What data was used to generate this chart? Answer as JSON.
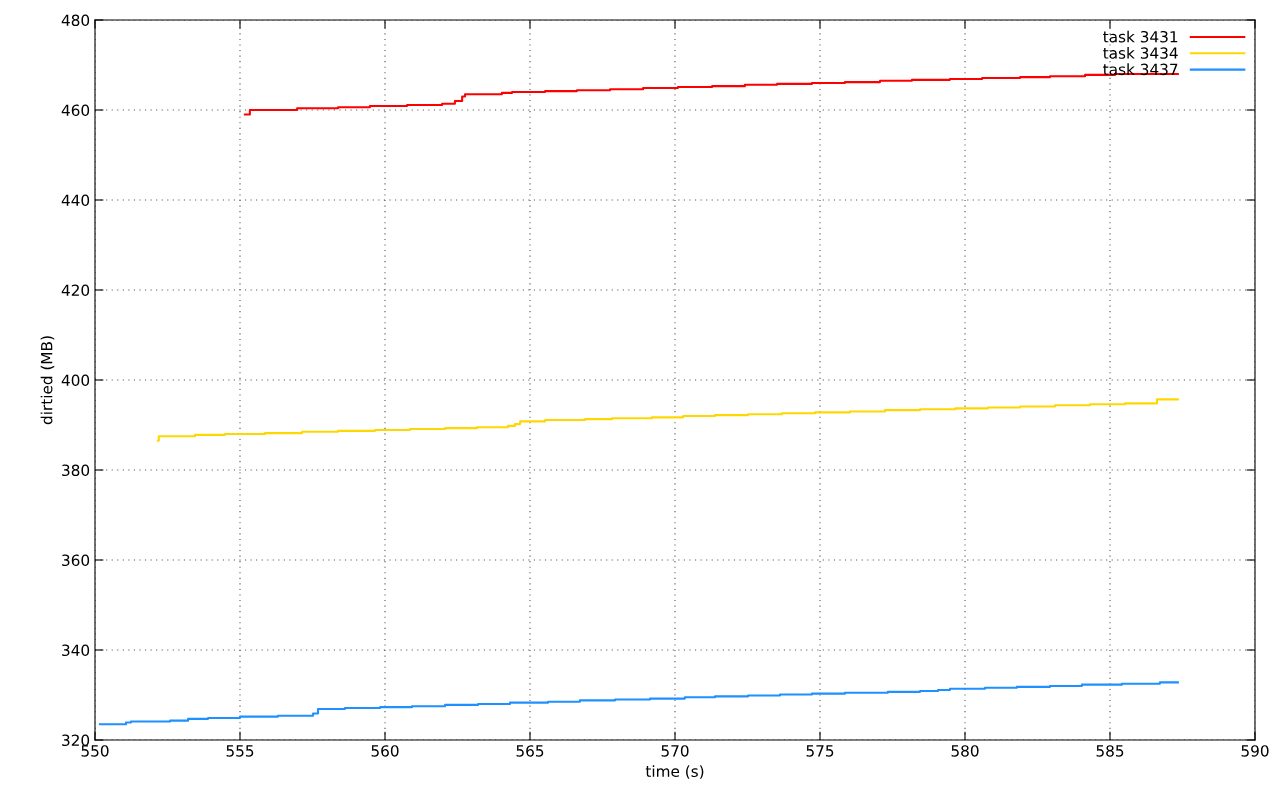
{
  "chart_data": {
    "type": "step",
    "xlabel": "time (s)",
    "ylabel": "dirtied (MB)",
    "xlim": [
      550,
      590
    ],
    "xticks": [
      550,
      555,
      560,
      565,
      570,
      575,
      580,
      585,
      590
    ],
    "ylim": [
      320,
      480
    ],
    "yticks": [
      320,
      340,
      360,
      380,
      400,
      420,
      440,
      460,
      480
    ],
    "grid": true,
    "legend": "top right",
    "line_style": "solid",
    "marker": "none",
    "series": [
      {
        "name": "task 3431",
        "color": "#ff0000",
        "x": [
          555.17,
          555.34,
          556.97,
          558.38,
          559.48,
          560.76,
          561.97,
          562.41,
          562.66,
          562.76,
          564.03,
          564.38,
          565.52,
          566.62,
          567.76,
          568.9,
          570.1,
          571.28,
          572.41,
          573.52,
          574.72,
          575.86,
          577.07,
          578.17,
          579.48,
          580.59,
          581.9,
          582.93,
          584.14,
          585.17,
          587.34
        ],
        "values": [
          459,
          460,
          460.4,
          460.6,
          460.9,
          461.1,
          461.4,
          462,
          463,
          463.5,
          463.8,
          464,
          464.2,
          464.4,
          464.6,
          464.9,
          465.1,
          465.3,
          465.6,
          465.8,
          466,
          466.2,
          466.5,
          466.7,
          466.9,
          467.1,
          467.3,
          467.5,
          467.8,
          468,
          468
        ]
      },
      {
        "name": "task 3434",
        "color": "#ffd700",
        "x": [
          552.17,
          552.2,
          553.45,
          554.48,
          555.86,
          557.14,
          558.38,
          559.66,
          560.86,
          562.07,
          563.17,
          564.24,
          564.48,
          564.66,
          565.52,
          566.9,
          567.83,
          569.2,
          570.28,
          571.38,
          572.52,
          573.69,
          574.83,
          576.03,
          577.24,
          578.45,
          579.66,
          580.79,
          581.9,
          583.1,
          584.31,
          585.52,
          586.62,
          587.34
        ],
        "values": [
          386.5,
          387.5,
          387.8,
          388.0,
          388.2,
          388.5,
          388.7,
          388.9,
          389.1,
          389.3,
          389.5,
          389.8,
          390.2,
          390.8,
          391.1,
          391.3,
          391.5,
          391.7,
          392.0,
          392.2,
          392.4,
          392.6,
          392.8,
          393.0,
          393.3,
          393.5,
          393.7,
          393.9,
          394.1,
          394.4,
          394.6,
          394.8,
          395.7,
          395.7
        ]
      },
      {
        "name": "task 3437",
        "color": "#1e90ff",
        "x": [
          550.17,
          551.07,
          551.24,
          552.59,
          553.21,
          553.9,
          555.0,
          556.31,
          557.52,
          557.69,
          558.62,
          559.83,
          560.93,
          562.07,
          563.21,
          564.31,
          565.62,
          566.72,
          567.93,
          569.14,
          570.34,
          571.38,
          572.52,
          573.62,
          574.72,
          575.86,
          577.34,
          578.45,
          579.07,
          579.48,
          580.69,
          581.79,
          582.93,
          584.03,
          585.41,
          586.72,
          587.34
        ],
        "values": [
          323.5,
          323.9,
          324.1,
          324.3,
          324.7,
          324.9,
          325.2,
          325.4,
          325.9,
          326.9,
          327.1,
          327.3,
          327.5,
          327.8,
          328.0,
          328.3,
          328.5,
          328.8,
          329.0,
          329.2,
          329.5,
          329.7,
          329.9,
          330.1,
          330.3,
          330.5,
          330.7,
          330.9,
          331.1,
          331.4,
          331.6,
          331.8,
          332.0,
          332.3,
          332.5,
          332.8,
          332.8
        ]
      }
    ]
  }
}
